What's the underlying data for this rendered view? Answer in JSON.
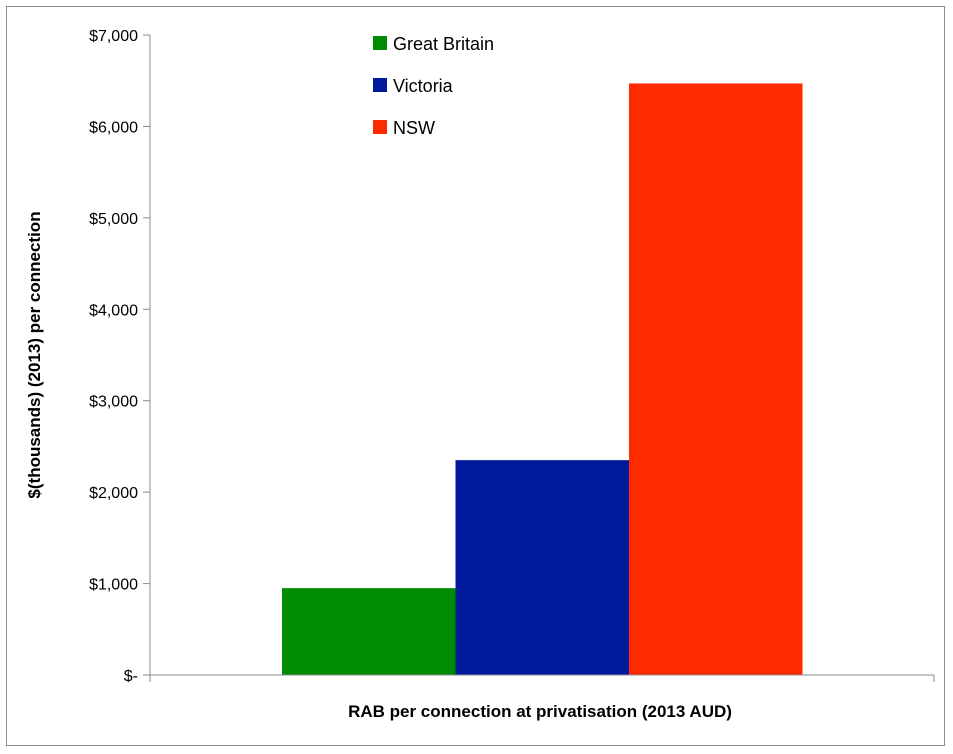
{
  "chart_data": {
    "type": "bar",
    "title": "",
    "xlabel": "RAB per connection at privatisation (2013 AUD)",
    "ylabel": "$(thousands) (2013) per connection",
    "ylim": [
      0,
      7000
    ],
    "yticks": [
      0,
      1000,
      2000,
      3000,
      4000,
      5000,
      6000,
      7000
    ],
    "ytick_labels": [
      "$-",
      "$1,000",
      "$2,000",
      "$3,000",
      "$4,000",
      "$5,000",
      "$6,000",
      "$7,000"
    ],
    "grid": false,
    "legend_position": "top-center",
    "series": [
      {
        "name": "Great Britain",
        "values": [
          950
        ],
        "color": "#008c00"
      },
      {
        "name": "Victoria",
        "values": [
          2350
        ],
        "color": "#001a9c"
      },
      {
        "name": "NSW",
        "values": [
          6470
        ],
        "color": "#ff2a00"
      }
    ]
  }
}
